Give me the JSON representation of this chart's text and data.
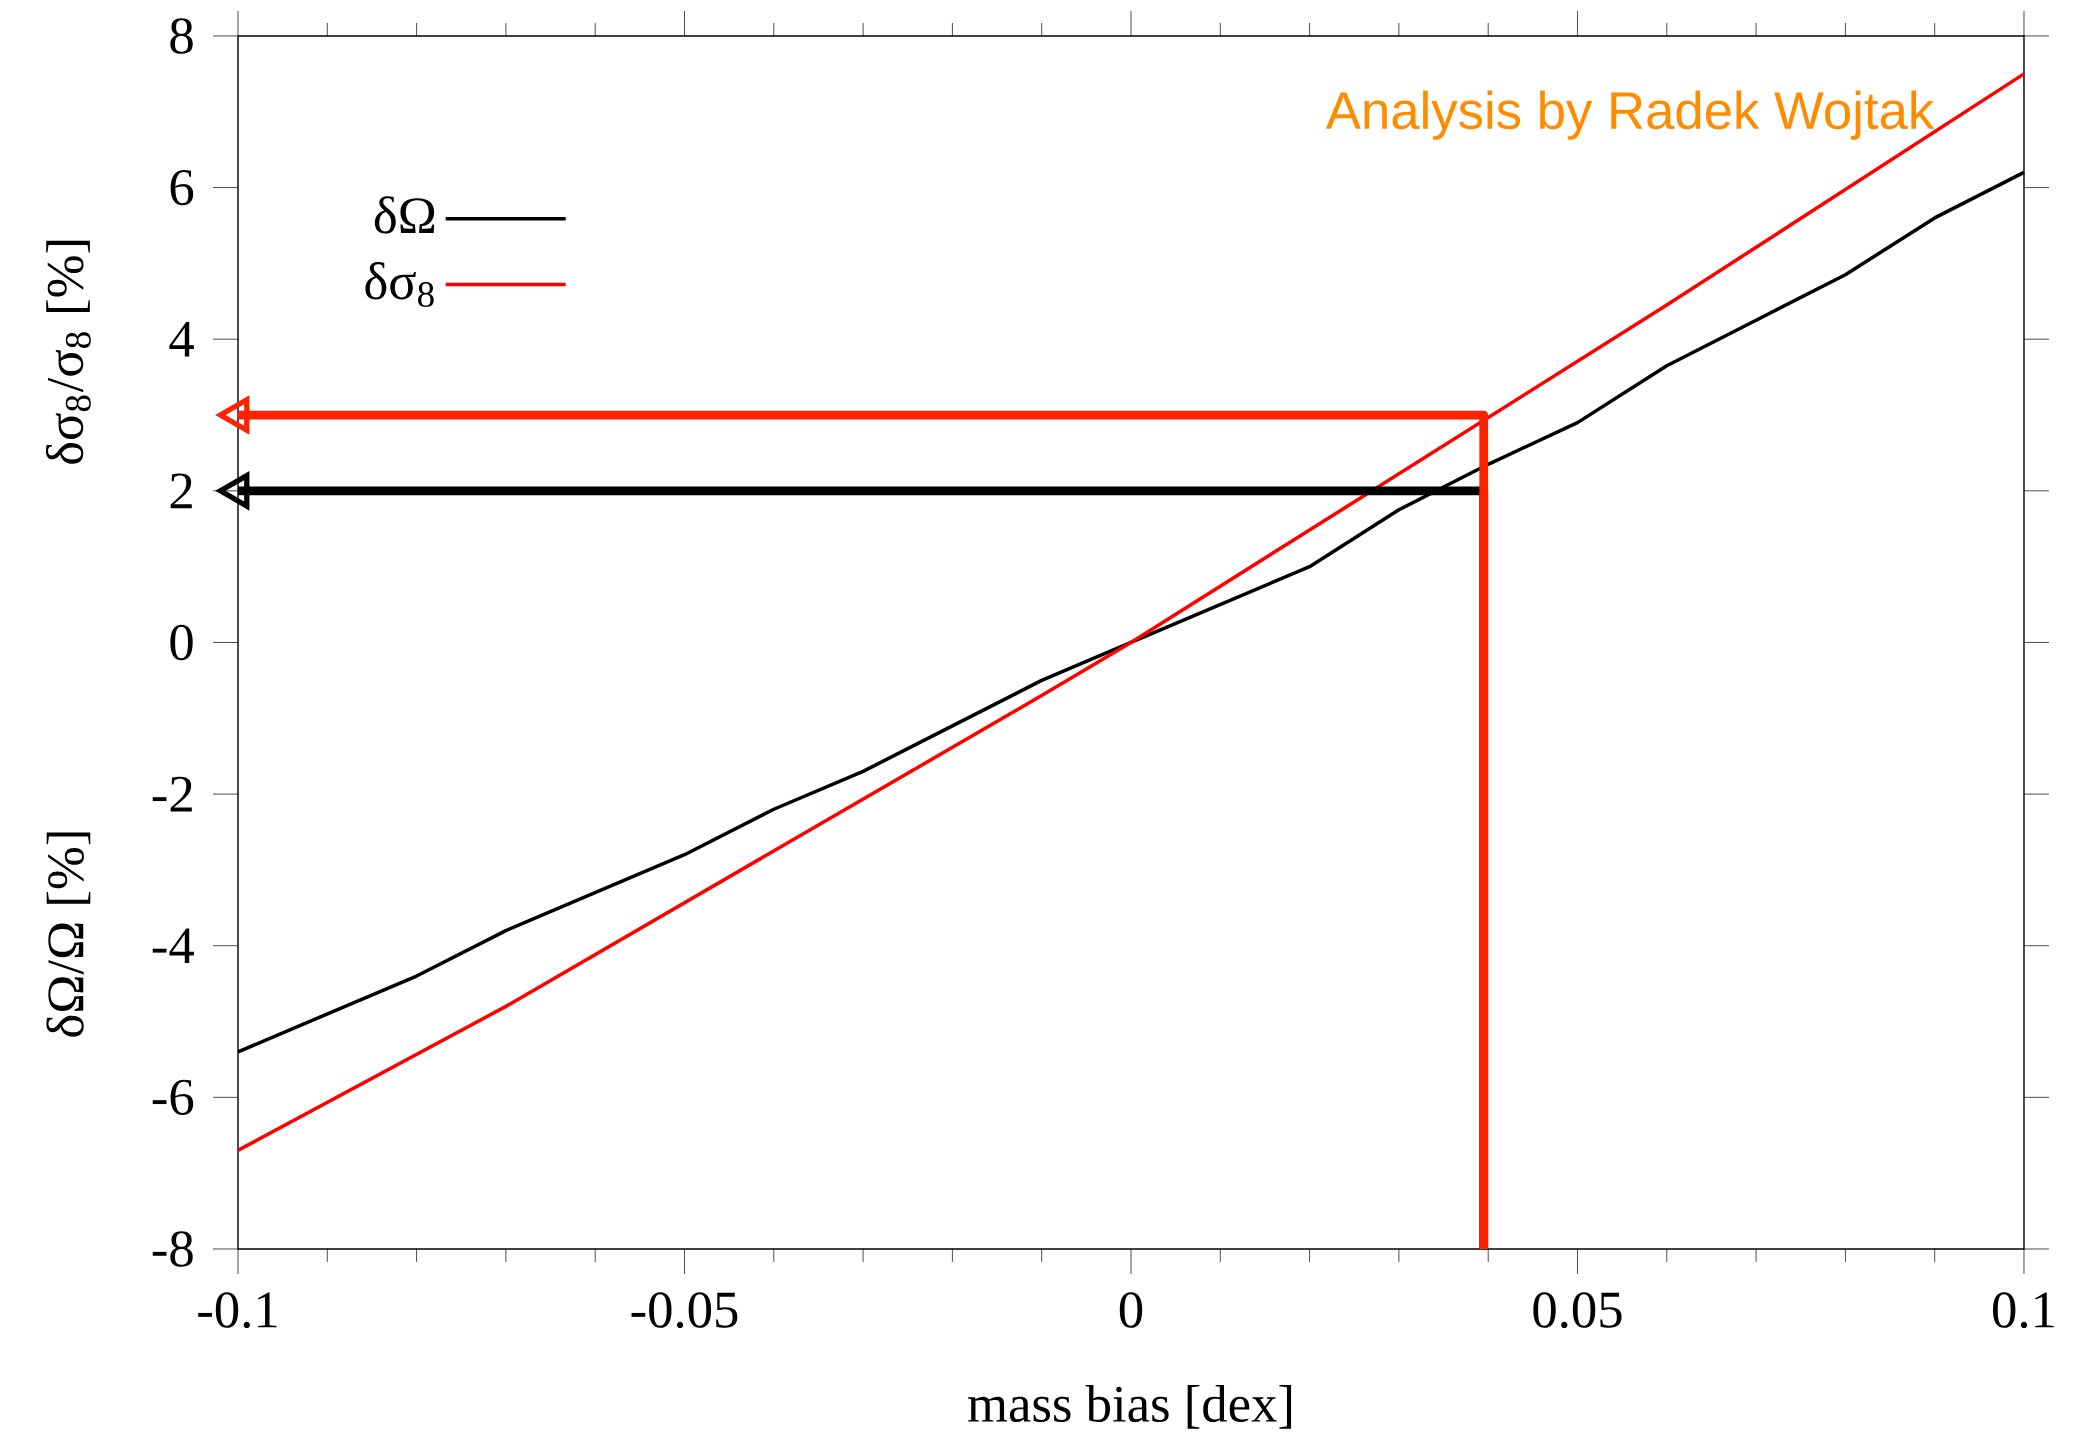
{
  "chart_data": {
    "type": "line",
    "xlabel": "mass bias [dex]",
    "ylabel": "δΩ/Ω [%]",
    "annotations": [
      "Analysis by Radek Wojtak",
      "δσ$_{8}$/σ$_{8}$ [%]"
    ],
    "xlim": [
      -0.1,
      0.1
    ],
    "ylim": [
      -8,
      8
    ],
    "xticks": [
      -0.1,
      -0.05,
      0,
      0.05,
      0.1
    ],
    "yticks": [
      -8,
      -6,
      -4,
      -2,
      0,
      2,
      4,
      6,
      8
    ],
    "legend": "top left",
    "grid": false,
    "series": [
      {
        "name": "δΩ",
        "color": "#000000",
        "x": [
          -0.1,
          -0.09,
          -0.08,
          -0.07,
          -0.06,
          -0.05,
          -0.04,
          -0.03,
          -0.02,
          -0.01,
          0,
          0.01,
          0.02,
          0.03,
          0.04,
          0.05,
          0.06,
          0.07,
          0.08,
          0.09,
          0.1
        ],
        "values": [
          -5.4,
          -4.9,
          -4.4,
          -3.8,
          -3.3,
          -2.8,
          -2.2,
          -1.7,
          -1.1,
          -0.5,
          0,
          0.5,
          1.0,
          1.75,
          2.35,
          2.9,
          3.65,
          4.25,
          4.85,
          5.6,
          6.2
        ]
      },
      {
        "name": "δσ$_{8}$",
        "color": "#ff0000",
        "x": [
          -0.1,
          -0.07,
          -0.01,
          0,
          0.06,
          0.1
        ],
        "values": [
          -6.7,
          -4.8,
          -0.7,
          0,
          4.45,
          7.5
        ]
      },
      {
        "color": "#000000",
        "x": [
          0.0395,
          0.0395,
          -0.1
        ],
        "values": [
          -8,
          2,
          2
        ]
      },
      {
        "color": "#ff2200",
        "x": [
          0.0395,
          0.0395,
          -0.1
        ],
        "values": [
          -8,
          3,
          3
        ]
      },
      {
        "type": "scatter",
        "color": "#000000",
        "marker": "triangle",
        "x": [
          -0.1
        ],
        "values": [
          2
        ]
      },
      {
        "type": "scatter",
        "color": "#ff2200",
        "marker": "triangle",
        "x": [
          -0.1
        ],
        "values": [
          3
        ]
      }
    ]
  }
}
